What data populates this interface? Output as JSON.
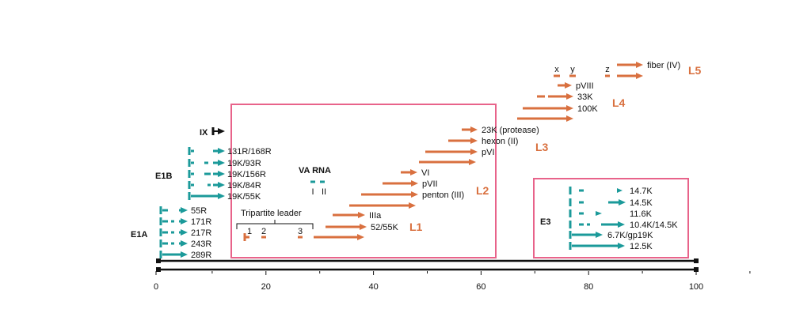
{
  "colors": {
    "orange": "#d9703f",
    "teal": "#1b9a9a",
    "pink": "#e8638a",
    "black": "#111111"
  },
  "axis": {
    "ticks": [
      "0",
      "20",
      "40",
      "60",
      "80",
      "100"
    ]
  },
  "ix": {
    "label": "IX"
  },
  "e1a": {
    "label": "E1A",
    "transcripts": [
      "55R",
      "171R",
      "217R",
      "243R",
      "289R"
    ]
  },
  "e1b": {
    "label": "E1B",
    "transcripts": [
      "131R/168R",
      "19K/93R",
      "19K/156R",
      "19K/84R",
      "19K/55K"
    ]
  },
  "va_rna": {
    "label": "VA RNA",
    "genes": [
      "I",
      "II"
    ]
  },
  "tripartite": {
    "label": "Tripartite leader",
    "exons": [
      "1",
      "2",
      "3"
    ]
  },
  "late_regions": {
    "l1": {
      "label": "L1",
      "products": [
        "IIIa",
        "52/55K"
      ]
    },
    "l2": {
      "label": "L2",
      "products": [
        "VI",
        "pVII",
        "penton (III)"
      ]
    },
    "l3": {
      "label": "L3",
      "products": [
        "23K (protease)",
        "hexon (II)",
        "pVI"
      ]
    },
    "l4": {
      "label": "L4",
      "products": [
        "pVIII",
        "33K",
        "100K"
      ]
    },
    "l5": {
      "label": "L5",
      "products": [
        "fiber (IV)"
      ],
      "exons": [
        "x",
        "y",
        "z"
      ]
    }
  },
  "e3": {
    "label": "E3",
    "products": [
      "14.7K",
      "14.5K",
      "11.6K",
      "10.4K/14.5K",
      "6.7K/gp19K",
      "12.5K"
    ]
  }
}
